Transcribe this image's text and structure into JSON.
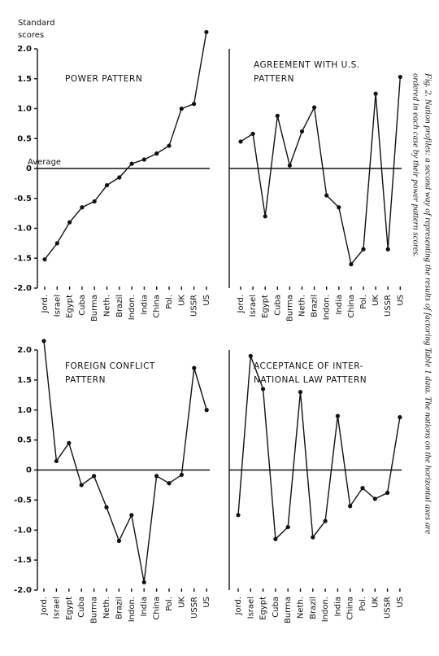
{
  "chart_data": [
    {
      "type": "line",
      "title": [
        "POWER PATTERN"
      ],
      "y_label": [
        "Standard",
        "scores"
      ],
      "annotation": "Average",
      "categories": [
        "Jord.",
        "Israel",
        "Egypt",
        "Cuba",
        "Burma",
        "Neth.",
        "Brazil",
        "Indon.",
        "India",
        "China",
        "Pol.",
        "UK",
        "USSR",
        "US"
      ],
      "values": [
        -1.52,
        -1.25,
        -0.9,
        -0.65,
        -0.55,
        -0.28,
        -0.15,
        0.08,
        0.15,
        0.25,
        0.38,
        1.0,
        1.08,
        2.28
      ],
      "color": "#111111",
      "ylim": [
        -2.0,
        2.0
      ],
      "yticks": [
        {
          "value": 2.0,
          "label": "2.0"
        },
        1.5,
        {
          "value": 1.0,
          "label": "1.0"
        },
        0.5,
        0,
        -0.5,
        {
          "value": -1.0,
          "label": "-1.0"
        },
        -1.5,
        {
          "value": -2.0,
          "label": "-2.0"
        }
      ]
    },
    {
      "type": "line",
      "title": [
        "AGREEMENT WITH U.S.",
        "PATTERN"
      ],
      "categories": [
        "Jord.",
        "Israel",
        "Egypt",
        "Cuba",
        "Burma",
        "Neth.",
        "Brazil",
        "Indon.",
        "India",
        "China",
        "Pol.",
        "UK",
        "USSR",
        "US"
      ],
      "values": [
        0.45,
        0.58,
        -0.8,
        0.88,
        0.05,
        0.62,
        1.02,
        -0.45,
        -0.65,
        -1.6,
        -1.35,
        1.25,
        -1.35,
        1.53
      ],
      "color": "#111111",
      "ylim": [
        -2.0,
        2.0
      ]
    },
    {
      "type": "line",
      "title": [
        "FOREIGN CONFLICT",
        "PATTERN"
      ],
      "categories": [
        "Jord.",
        "Israel",
        "Egypt",
        "Cuba",
        "Burma",
        "Neth.",
        "Brazil",
        "Indon.",
        "India",
        "China",
        "Pol.",
        "UK",
        "USSR",
        "US"
      ],
      "values": [
        2.15,
        0.15,
        0.45,
        -0.25,
        -0.1,
        -0.62,
        -1.18,
        -0.75,
        -1.87,
        -0.1,
        -0.22,
        -0.08,
        1.7,
        1.0
      ],
      "color": "#111111",
      "ylim": [
        -2.0,
        2.0
      ],
      "yticks": [
        {
          "value": 2.0,
          "label": "2.0"
        },
        1.5,
        {
          "value": 1.0,
          "label": "1.0"
        },
        0.5,
        0,
        -0.5,
        {
          "value": -1.0,
          "label": "-1.0"
        },
        -1.5,
        {
          "value": -2.0,
          "label": "-2.0"
        }
      ]
    },
    {
      "type": "line",
      "title": [
        "ACCEPTANCE OF INTER-",
        "NATIONAL LAW PATTERN"
      ],
      "categories": [
        "Jord.",
        "Israel",
        "Egypt",
        "Cuba",
        "Burma",
        "Neth.",
        "Brazil",
        "Indon.",
        "India",
        "China",
        "Pol.",
        "UK",
        "USSR",
        "US"
      ],
      "values": [
        -0.75,
        1.9,
        1.35,
        -1.15,
        -0.95,
        1.3,
        -1.12,
        -0.85,
        0.9,
        -0.6,
        -0.3,
        -0.48,
        -0.38,
        0.88
      ],
      "color": "#111111",
      "ylim": [
        -2.0,
        2.0
      ]
    }
  ],
  "caption": [
    "Fig. 2.  Nation profiles: a second way of representing the results of factoring Table 1 data.  The nations on the horizontal axes are",
    "ordered in each case by their power pattern scores."
  ]
}
